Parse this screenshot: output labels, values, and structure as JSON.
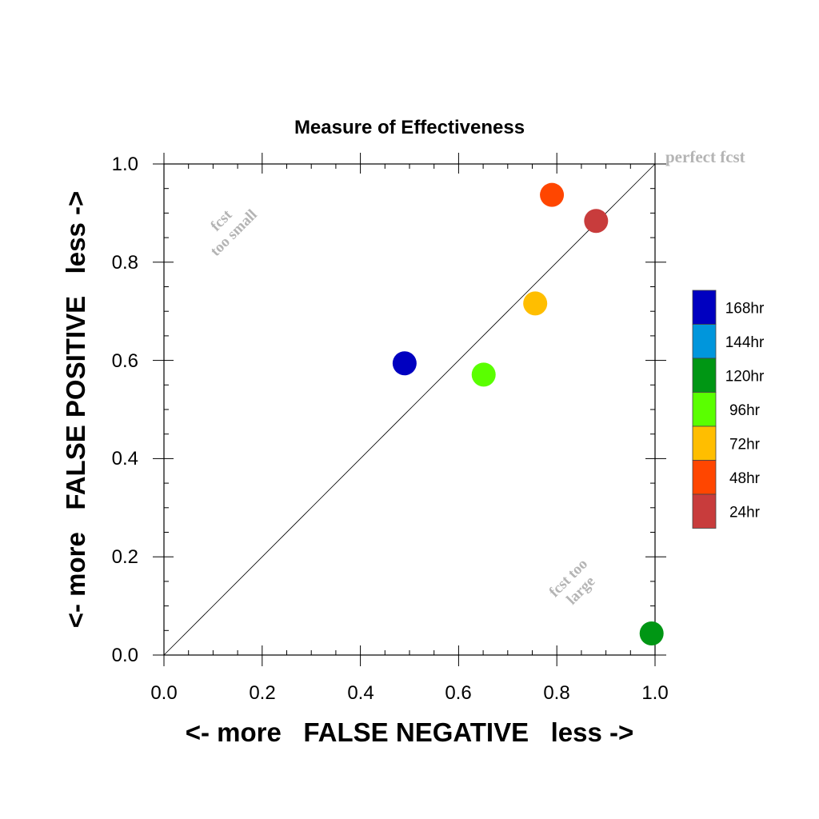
{
  "chart_data": {
    "type": "scatter",
    "title": "Measure of Effectiveness",
    "xlabel": "<- more   FALSE NEGATIVE   less ->",
    "ylabel": "<- more   FALSE POSITIVE   less ->",
    "xlim": [
      0.0,
      1.0
    ],
    "ylim": [
      0.0,
      1.0
    ],
    "x_ticks": [
      "0.0",
      "0.2",
      "0.4",
      "0.6",
      "0.8",
      "1.0"
    ],
    "y_ticks": [
      "0.0",
      "0.2",
      "0.4",
      "0.6",
      "0.8",
      "1.0"
    ],
    "grid": false,
    "diagonal_label": "perfect fcst",
    "annotations": {
      "upper_left": [
        "fcst",
        "too small"
      ],
      "lower_right": [
        "fcst too",
        "large"
      ]
    },
    "legend_placement": "right",
    "legend": [
      {
        "label": "168hr",
        "color": "#0000c0"
      },
      {
        "label": "144hr",
        "color": "#0096dc"
      },
      {
        "label": "120hr",
        "color": "#009614"
      },
      {
        "label": "96hr",
        "color": "#5aff00"
      },
      {
        "label": "72hr",
        "color": "#ffbe00"
      },
      {
        "label": "48hr",
        "color": "#ff4600"
      },
      {
        "label": "24hr",
        "color": "#c83c3c"
      }
    ],
    "points": [
      {
        "series": "168hr",
        "x": 0.49,
        "y": 0.594
      },
      {
        "series": "120hr",
        "x": 0.993,
        "y": 0.044
      },
      {
        "series": "96hr",
        "x": 0.651,
        "y": 0.571
      },
      {
        "series": "72hr",
        "x": 0.756,
        "y": 0.716
      },
      {
        "series": "48hr",
        "x": 0.79,
        "y": 0.937
      },
      {
        "series": "24hr",
        "x": 0.88,
        "y": 0.884
      }
    ]
  }
}
